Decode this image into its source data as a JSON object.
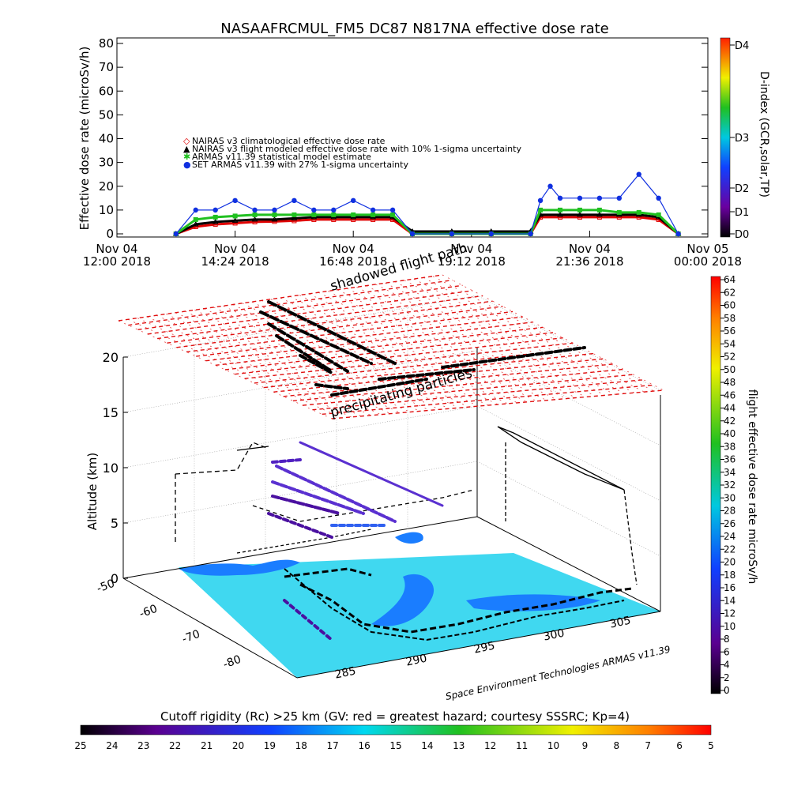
{
  "title": "NASAAFRCMUL_FM5 DC87 N817NA effective dose rate",
  "top_chart": {
    "ylabel": "Effective dose rate (microSv/h)",
    "yticks": [
      "0",
      "10",
      "20",
      "30",
      "40",
      "50",
      "60",
      "70",
      "80"
    ],
    "xticks": [
      {
        "l1": "Nov 04",
        "l2": "12:00 2018"
      },
      {
        "l1": "Nov 04",
        "l2": "14:24 2018"
      },
      {
        "l1": "Nov 04",
        "l2": "16:48 2018"
      },
      {
        "l1": "Nov 04",
        "l2": "19:12 2018"
      },
      {
        "l1": "Nov 04",
        "l2": "21:36 2018"
      },
      {
        "l1": "Nov 05",
        "l2": "00:00 2018"
      }
    ],
    "legend": [
      {
        "symbol": "◇",
        "text": "NAIRAS v3 climatological effective dose rate",
        "color": "#e00000"
      },
      {
        "symbol": "▲",
        "text": "NAIRAS v3 flight modeled effective dose rate with 10% 1-sigma uncertainty",
        "color": "#000000"
      },
      {
        "symbol": "✱",
        "text": "ARMAS v11.39 statistical model estimate",
        "color": "#20c020"
      },
      {
        "symbol": "●",
        "text": "SET ARMAS v11.39 with 27% 1-sigma uncertainty",
        "color": "#1030e0"
      }
    ],
    "dindex": {
      "label": "D-index (GCR,solar,TP)",
      "ticks": [
        "D0",
        "D1",
        "D2",
        "D3",
        "D4"
      ]
    }
  },
  "scene": {
    "zlabel": "Altitude (km)",
    "zticks": [
      "0",
      "5",
      "10",
      "15",
      "20"
    ],
    "lat_ticks": [
      "-50",
      "-60",
      "-70",
      "-80"
    ],
    "lon_ticks": [
      "285",
      "290",
      "295",
      "300",
      "305"
    ],
    "shell_label_1": "shadowed flight path",
    "shell_label_2": "precipitating particles",
    "credit": "Space Environment Technologies ARMAS v11.39"
  },
  "right_colorbar": {
    "label": "flight effective dose rate microSv/h",
    "ticks": [
      "0",
      "2",
      "4",
      "6",
      "8",
      "10",
      "12",
      "14",
      "16",
      "18",
      "20",
      "22",
      "24",
      "26",
      "28",
      "30",
      "32",
      "34",
      "36",
      "38",
      "40",
      "42",
      "44",
      "46",
      "48",
      "50",
      "52",
      "54",
      "56",
      "58",
      "60",
      "62",
      "64"
    ]
  },
  "bottom_colorbar": {
    "label": "Cutoff rigidity (Rc) >25 km (GV: red = greatest hazard; courtesy SSSRC; Kp=4)",
    "ticks": [
      "25",
      "24",
      "23",
      "22",
      "21",
      "20",
      "19",
      "18",
      "17",
      "16",
      "15",
      "14",
      "13",
      "12",
      "11",
      "10",
      "9",
      "8",
      "7",
      "6",
      "5"
    ]
  },
  "chart_data": [
    {
      "type": "scatter",
      "title": "NASAAFRCMUL_FM5 DC87 N817NA effective dose rate",
      "ylabel": "Effective dose rate (microSv/h)",
      "xlabel": "",
      "x_unit": "hours since Nov 04 12:00 2018",
      "ylim": [
        0,
        80
      ],
      "xlim": [
        0,
        12
      ],
      "series": [
        {
          "name": "NAIRAS v3 climatological effective dose rate",
          "x": [
            1.2,
            1.6,
            2.0,
            2.4,
            2.8,
            3.2,
            3.6,
            4.0,
            4.4,
            4.8,
            5.2,
            5.6,
            6.0,
            6.8,
            7.6,
            8.4,
            8.6,
            9.0,
            9.4,
            9.8,
            10.2,
            10.6,
            11.0,
            11.4
          ],
          "y": [
            0,
            3,
            4,
            4.5,
            5,
            5.2,
            5.5,
            6,
            6,
            6,
            6,
            6,
            0,
            0,
            0,
            0,
            7,
            7,
            7,
            7,
            7,
            7,
            6,
            0
          ]
        },
        {
          "name": "NAIRAS v3 flight modeled effective dose rate with 10% 1-sigma uncertainty",
          "x": [
            1.2,
            1.6,
            2.0,
            2.4,
            2.8,
            3.2,
            3.6,
            4.0,
            4.4,
            4.8,
            5.2,
            5.6,
            6.0,
            6.8,
            7.6,
            8.4,
            8.6,
            9.0,
            9.4,
            9.8,
            10.2,
            10.6,
            11.0,
            11.4
          ],
          "y": [
            0,
            4,
            5,
            5.5,
            6,
            6,
            6.5,
            7,
            7,
            7,
            7,
            7,
            1,
            1,
            1,
            1,
            8,
            8,
            8,
            8,
            8,
            8,
            7,
            0
          ]
        },
        {
          "name": "ARMAS v11.39 statistical model estimate",
          "x": [
            1.2,
            1.6,
            2.0,
            2.4,
            2.8,
            3.2,
            3.6,
            4.0,
            4.4,
            4.8,
            5.2,
            5.6,
            6.0,
            6.8,
            7.6,
            8.4,
            8.6,
            9.0,
            9.4,
            9.8,
            10.2,
            10.6,
            11.0,
            11.4
          ],
          "y": [
            0,
            6,
            7,
            7.5,
            8,
            8,
            8,
            8,
            8,
            8,
            8,
            8,
            0,
            0,
            0,
            0,
            10,
            10,
            10,
            10,
            9,
            9,
            8,
            0
          ]
        },
        {
          "name": "SET ARMAS v11.39 with 27% 1-sigma uncertainty",
          "x": [
            1.2,
            1.6,
            2.0,
            2.4,
            2.8,
            3.2,
            3.6,
            4.0,
            4.4,
            4.8,
            5.2,
            5.6,
            6.0,
            6.8,
            7.6,
            8.4,
            8.6,
            8.8,
            9.0,
            9.4,
            9.8,
            10.2,
            10.6,
            11.0,
            11.4
          ],
          "y": [
            0,
            10,
            10,
            14,
            10,
            10,
            14,
            10,
            10,
            14,
            10,
            10,
            0,
            0,
            0,
            0,
            14,
            20,
            15,
            15,
            15,
            15,
            25,
            15,
            0
          ]
        }
      ]
    },
    {
      "type": "heatmap",
      "title": "",
      "xlabel": "",
      "ylabel": "Altitude (km)",
      "zlabel": "flight effective dose rate microSv/h",
      "zlim": [
        0,
        64
      ],
      "altitude_range_km": [
        0,
        20
      ],
      "lat_range": [
        -80,
        -50
      ],
      "lon_range": [
        285,
        305
      ]
    }
  ]
}
